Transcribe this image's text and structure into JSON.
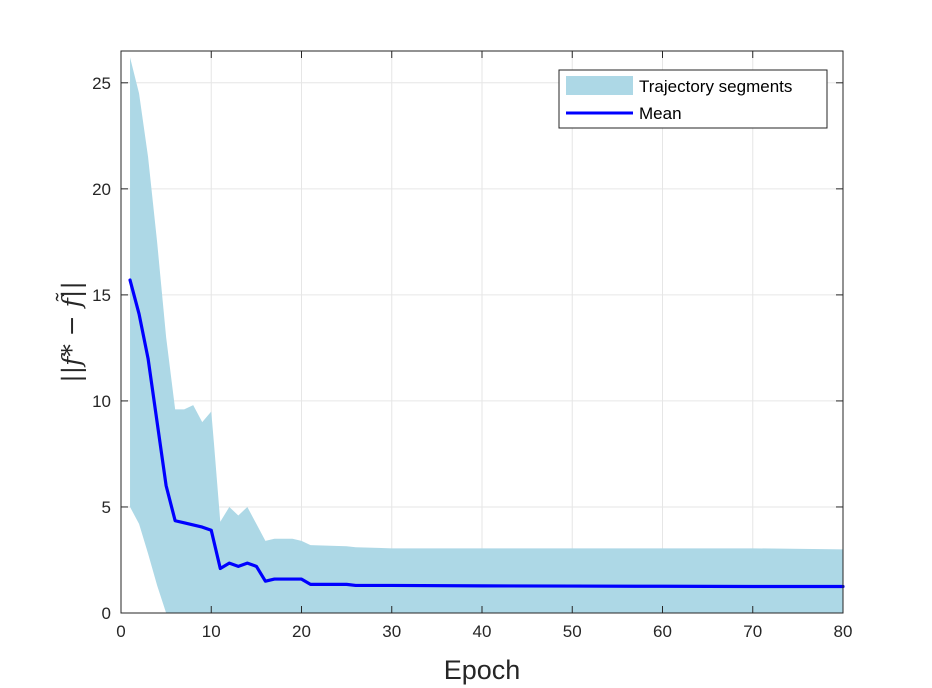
{
  "chart_data": {
    "type": "area",
    "xlabel": "Epoch",
    "ylabel": "||f* − f̃||",
    "xlim": [
      0,
      80
    ],
    "ylim": [
      0,
      26.5
    ],
    "xticks": [
      0,
      10,
      20,
      30,
      40,
      50,
      60,
      70,
      80
    ],
    "yticks": [
      0,
      5,
      10,
      15,
      20,
      25
    ],
    "grid": true,
    "legend": {
      "placement": "top-right",
      "entries": [
        "Trajectory segments",
        "Mean"
      ]
    },
    "series": [
      {
        "name": "Trajectory segments",
        "kind": "band",
        "color": "#add8e6",
        "x": [
          1,
          2,
          3,
          4,
          5,
          6,
          7,
          8,
          9,
          10,
          10.3,
          11,
          12,
          13,
          14,
          15,
          16,
          17,
          18,
          19,
          20,
          21,
          25,
          26,
          30,
          40,
          50,
          60,
          70,
          80
        ],
        "upper": [
          26.2,
          24.5,
          21.5,
          17.5,
          13.0,
          9.6,
          9.6,
          9.8,
          9.0,
          9.5,
          8.0,
          4.3,
          5.0,
          4.6,
          5.0,
          4.2,
          3.4,
          3.5,
          3.5,
          3.5,
          3.4,
          3.2,
          3.15,
          3.1,
          3.05,
          3.05,
          3.05,
          3.05,
          3.05,
          3.0
        ],
        "lower": [
          5.0,
          4.2,
          2.8,
          1.3,
          0,
          0,
          0,
          0,
          0,
          0,
          0,
          0,
          0,
          0,
          0,
          0,
          0,
          0,
          0,
          0,
          0,
          0,
          0,
          0,
          0,
          0,
          0,
          0,
          0,
          0
        ]
      },
      {
        "name": "Mean",
        "kind": "line",
        "color": "#0000ff",
        "x": [
          1,
          2,
          3,
          4,
          5,
          6,
          7,
          8,
          9,
          10,
          11,
          12,
          13,
          14,
          15,
          16,
          17,
          18,
          19,
          20,
          21,
          25,
          26,
          30,
          40,
          50,
          60,
          70,
          80
        ],
        "values": [
          15.7,
          14.1,
          12.0,
          9.0,
          6.0,
          4.35,
          4.25,
          4.15,
          4.05,
          3.9,
          2.1,
          2.35,
          2.2,
          2.35,
          2.2,
          1.5,
          1.6,
          1.6,
          1.6,
          1.6,
          1.35,
          1.35,
          1.3,
          1.3,
          1.28,
          1.27,
          1.26,
          1.25,
          1.25
        ]
      }
    ]
  }
}
